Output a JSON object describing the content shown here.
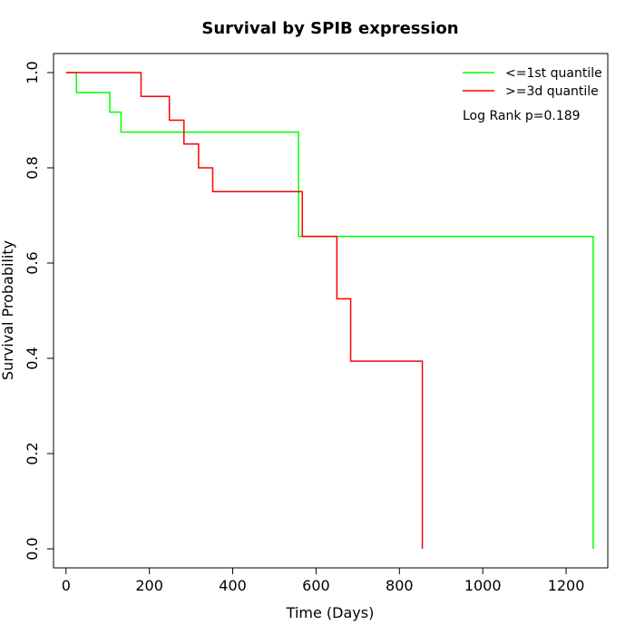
{
  "chart_data": {
    "type": "line",
    "title": "Survival by SPIB expression",
    "xlabel": "Time (Days)",
    "ylabel": "Survival Probability",
    "xlim": [
      -30,
      1300
    ],
    "ylim": [
      -0.04,
      1.04
    ],
    "xticks": [
      0,
      200,
      400,
      600,
      800,
      1000,
      1200
    ],
    "yticks": [
      0.0,
      0.2,
      0.4,
      0.6,
      0.8,
      1.0
    ],
    "ytick_labels": [
      "0.0",
      "0.2",
      "0.4",
      "0.6",
      "0.8",
      "1.0"
    ],
    "grid": false,
    "legend_position": "top-right",
    "annotation": "Log Rank p=0.189",
    "series": [
      {
        "name": "<=1st quantile",
        "color": "#00ff00",
        "step": true,
        "x": [
          0,
          25,
          105,
          132,
          558,
          1265,
          1265
        ],
        "y": [
          1.0,
          0.958,
          0.917,
          0.875,
          0.656,
          0.656,
          0.0
        ]
      },
      {
        "name": ">=3d quantile",
        "color": "#ff0000",
        "step": true,
        "x": [
          0,
          180,
          248,
          283,
          318,
          352,
          567,
          650,
          683,
          855,
          855
        ],
        "y": [
          1.0,
          0.95,
          0.9,
          0.85,
          0.8,
          0.75,
          0.656,
          0.525,
          0.394,
          0.394,
          0.0
        ]
      }
    ]
  }
}
